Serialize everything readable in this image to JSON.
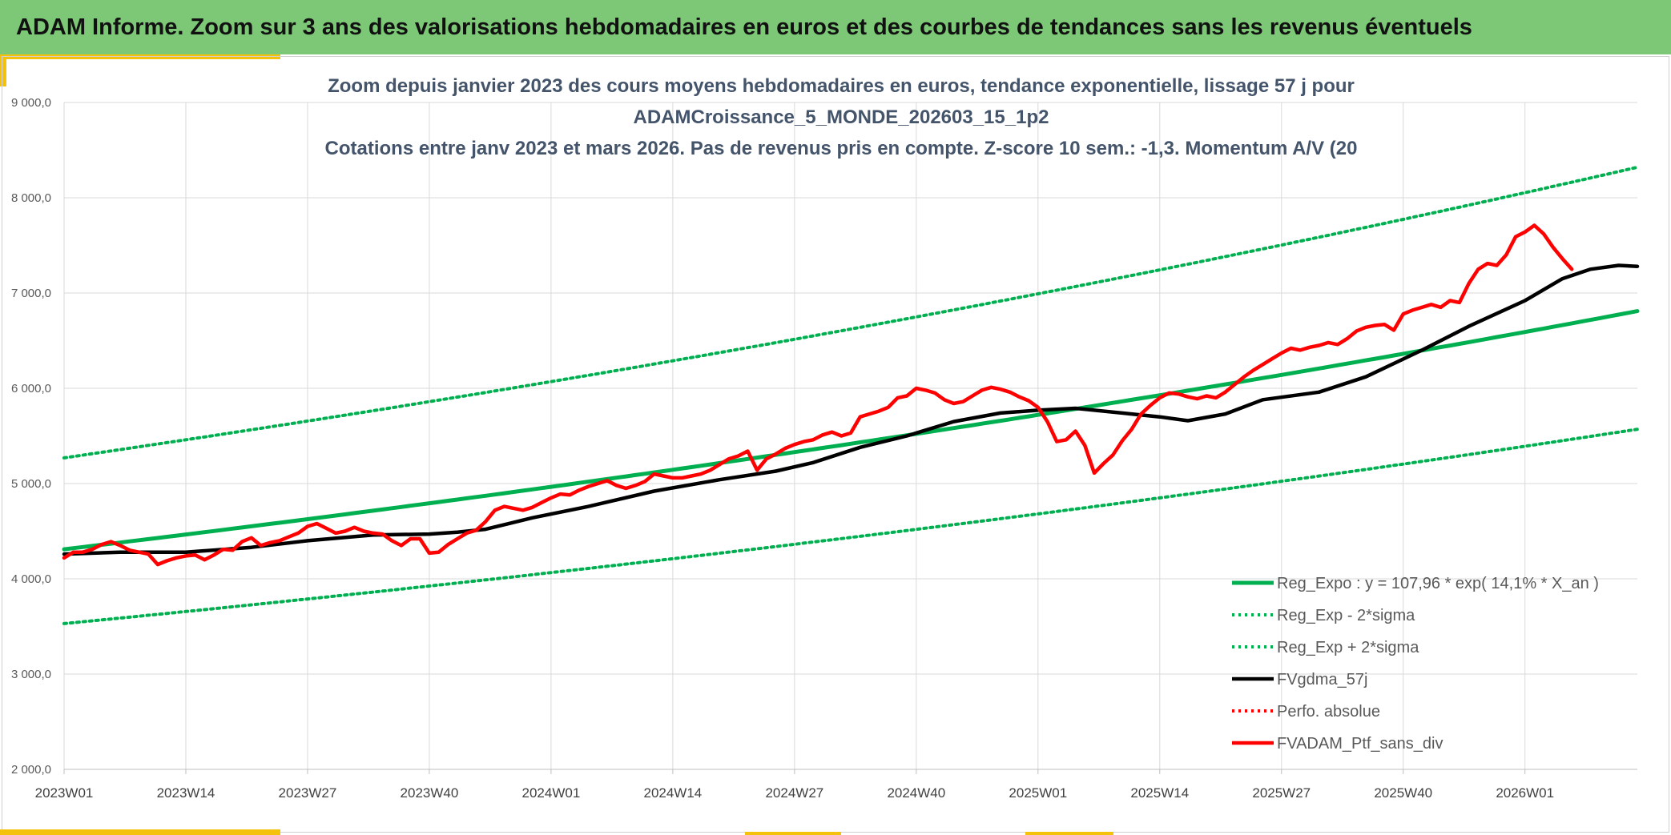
{
  "banner": {
    "title": "ADAM Informe. Zoom sur 3 ans des valorisations hebdomadaires en euros et des courbes de tendances sans les revenus éventuels"
  },
  "colors": {
    "banner_bg": "#7dc876",
    "reg_expo": "#00b050",
    "fvgdma": "#000000",
    "fvadam": "#ff0000",
    "accent": "#f4c20d"
  },
  "chart_data": {
    "type": "line",
    "title_lines": [
      "Zoom depuis janvier 2023 des cours moyens hebdomadaires en euros, tendance exponentielle, lissage 57 j pour",
      "ADAMCroissance_5_MONDE_202603_15_1p2",
      "Cotations entre janv 2023 et mars 2026. Pas de revenus pris en compte. Z-score 10 sem.: -1,3. Momentum A/V (20"
    ],
    "x_tick_labels": [
      "2023W01",
      "2023W14",
      "2023W27",
      "2023W40",
      "2024W01",
      "2024W14",
      "2024W27",
      "2024W40",
      "2025W01",
      "2025W14",
      "2025W27",
      "2025W40",
      "2026W01"
    ],
    "x_tick_weeks": [
      0,
      13,
      26,
      39,
      52,
      65,
      78,
      91,
      104,
      117,
      130,
      143,
      156
    ],
    "x_range_weeks": [
      0,
      168
    ],
    "y_tick_labels": [
      "2 000,0",
      "3 000,0",
      "4 000,0",
      "5 000,0",
      "6 000,0",
      "7 000,0",
      "8 000,0",
      "9 000,0"
    ],
    "y_ticks": [
      2000,
      3000,
      4000,
      5000,
      6000,
      7000,
      8000,
      9000
    ],
    "ylim": [
      2000,
      9000
    ],
    "grid": true,
    "legend_position": "bottom-right",
    "legend": [
      "Reg_Expo : y = 107,96 * exp( 14,1% *  X_an )",
      "Reg_Exp - 2*sigma",
      "Reg_Exp + 2*sigma",
      "FVgdma_57j",
      "Perfo. absolue",
      "FVADAM_Ptf_sans_div"
    ],
    "series": [
      {
        "name": "Reg_Expo : y = 107,96 * exp( 14,1% *  X_an )",
        "style": "solid-green",
        "x": [
          0,
          168
        ],
        "start": 4310,
        "end": 6810,
        "model": "exponential"
      },
      {
        "name": "Reg_Exp - 2*sigma",
        "style": "dotted-green",
        "x": [
          0,
          168
        ],
        "start": 3530,
        "end": 5570,
        "model": "exponential"
      },
      {
        "name": "Reg_Exp + 2*sigma",
        "style": "dotted-green",
        "x": [
          0,
          168
        ],
        "start": 5270,
        "end": 8320,
        "model": "exponential"
      },
      {
        "name": "FVgdma_57j",
        "style": "solid-black",
        "points": [
          [
            0,
            4260
          ],
          [
            6,
            4280
          ],
          [
            13,
            4280
          ],
          [
            20,
            4330
          ],
          [
            26,
            4400
          ],
          [
            33,
            4460
          ],
          [
            39,
            4470
          ],
          [
            42,
            4490
          ],
          [
            45,
            4520
          ],
          [
            50,
            4640
          ],
          [
            56,
            4760
          ],
          [
            63,
            4920
          ],
          [
            70,
            5040
          ],
          [
            76,
            5130
          ],
          [
            80,
            5220
          ],
          [
            85,
            5380
          ],
          [
            90,
            5500
          ],
          [
            95,
            5650
          ],
          [
            100,
            5740
          ],
          [
            104,
            5770
          ],
          [
            108,
            5790
          ],
          [
            114,
            5730
          ],
          [
            117,
            5700
          ],
          [
            120,
            5660
          ],
          [
            124,
            5730
          ],
          [
            128,
            5880
          ],
          [
            134,
            5960
          ],
          [
            139,
            6120
          ],
          [
            145,
            6400
          ],
          [
            150,
            6650
          ],
          [
            156,
            6920
          ],
          [
            160,
            7150
          ],
          [
            163,
            7250
          ],
          [
            166,
            7290
          ],
          [
            168,
            7280
          ]
        ]
      },
      {
        "name": "FVADAM_Ptf_sans_div",
        "style": "solid-red",
        "points": [
          [
            0,
            4220
          ],
          [
            1,
            4280
          ],
          [
            2,
            4280
          ],
          [
            3,
            4310
          ],
          [
            4,
            4360
          ],
          [
            5,
            4390
          ],
          [
            6,
            4350
          ],
          [
            7,
            4300
          ],
          [
            8,
            4280
          ],
          [
            9,
            4260
          ],
          [
            10,
            4150
          ],
          [
            11,
            4190
          ],
          [
            12,
            4220
          ],
          [
            13,
            4240
          ],
          [
            14,
            4250
          ],
          [
            15,
            4200
          ],
          [
            16,
            4250
          ],
          [
            17,
            4310
          ],
          [
            18,
            4300
          ],
          [
            19,
            4390
          ],
          [
            20,
            4430
          ],
          [
            21,
            4350
          ],
          [
            22,
            4380
          ],
          [
            23,
            4400
          ],
          [
            24,
            4440
          ],
          [
            25,
            4480
          ],
          [
            26,
            4550
          ],
          [
            27,
            4580
          ],
          [
            28,
            4530
          ],
          [
            29,
            4480
          ],
          [
            30,
            4500
          ],
          [
            31,
            4540
          ],
          [
            32,
            4500
          ],
          [
            33,
            4480
          ],
          [
            34,
            4470
          ],
          [
            35,
            4400
          ],
          [
            36,
            4350
          ],
          [
            37,
            4420
          ],
          [
            38,
            4420
          ],
          [
            39,
            4270
          ],
          [
            40,
            4280
          ],
          [
            41,
            4360
          ],
          [
            42,
            4420
          ],
          [
            43,
            4480
          ],
          [
            44,
            4510
          ],
          [
            45,
            4600
          ],
          [
            46,
            4720
          ],
          [
            47,
            4760
          ],
          [
            48,
            4740
          ],
          [
            49,
            4720
          ],
          [
            50,
            4750
          ],
          [
            51,
            4800
          ],
          [
            52,
            4850
          ],
          [
            53,
            4890
          ],
          [
            54,
            4880
          ],
          [
            55,
            4930
          ],
          [
            56,
            4970
          ],
          [
            57,
            5000
          ],
          [
            58,
            5030
          ],
          [
            59,
            4980
          ],
          [
            60,
            4950
          ],
          [
            61,
            4980
          ],
          [
            62,
            5020
          ],
          [
            63,
            5100
          ],
          [
            64,
            5080
          ],
          [
            65,
            5060
          ],
          [
            66,
            5060
          ],
          [
            67,
            5080
          ],
          [
            68,
            5100
          ],
          [
            69,
            5140
          ],
          [
            70,
            5200
          ],
          [
            71,
            5260
          ],
          [
            72,
            5290
          ],
          [
            73,
            5340
          ],
          [
            74,
            5140
          ],
          [
            75,
            5260
          ],
          [
            76,
            5310
          ],
          [
            77,
            5370
          ],
          [
            78,
            5410
          ],
          [
            79,
            5440
          ],
          [
            80,
            5460
          ],
          [
            81,
            5510
          ],
          [
            82,
            5540
          ],
          [
            83,
            5500
          ],
          [
            84,
            5530
          ],
          [
            85,
            5700
          ],
          [
            86,
            5730
          ],
          [
            87,
            5760
          ],
          [
            88,
            5800
          ],
          [
            89,
            5900
          ],
          [
            90,
            5920
          ],
          [
            91,
            6000
          ],
          [
            92,
            5980
          ],
          [
            93,
            5950
          ],
          [
            94,
            5880
          ],
          [
            95,
            5840
          ],
          [
            96,
            5860
          ],
          [
            97,
            5920
          ],
          [
            98,
            5980
          ],
          [
            99,
            6010
          ],
          [
            100,
            5990
          ],
          [
            101,
            5960
          ],
          [
            102,
            5910
          ],
          [
            103,
            5870
          ],
          [
            104,
            5800
          ],
          [
            105,
            5650
          ],
          [
            106,
            5440
          ],
          [
            107,
            5460
          ],
          [
            108,
            5550
          ],
          [
            109,
            5400
          ],
          [
            110,
            5110
          ],
          [
            111,
            5210
          ],
          [
            112,
            5300
          ],
          [
            113,
            5450
          ],
          [
            114,
            5570
          ],
          [
            115,
            5730
          ],
          [
            116,
            5820
          ],
          [
            117,
            5900
          ],
          [
            118,
            5950
          ],
          [
            119,
            5940
          ],
          [
            120,
            5910
          ],
          [
            121,
            5890
          ],
          [
            122,
            5920
          ],
          [
            123,
            5900
          ],
          [
            124,
            5960
          ],
          [
            125,
            6040
          ],
          [
            126,
            6120
          ],
          [
            127,
            6190
          ],
          [
            128,
            6250
          ],
          [
            129,
            6310
          ],
          [
            130,
            6370
          ],
          [
            131,
            6420
          ],
          [
            132,
            6400
          ],
          [
            133,
            6430
          ],
          [
            134,
            6450
          ],
          [
            135,
            6480
          ],
          [
            136,
            6460
          ],
          [
            137,
            6520
          ],
          [
            138,
            6600
          ],
          [
            139,
            6640
          ],
          [
            140,
            6660
          ],
          [
            141,
            6670
          ],
          [
            142,
            6610
          ],
          [
            143,
            6780
          ],
          [
            144,
            6820
          ],
          [
            145,
            6850
          ],
          [
            146,
            6880
          ],
          [
            147,
            6850
          ],
          [
            148,
            6920
          ],
          [
            149,
            6900
          ],
          [
            150,
            7100
          ],
          [
            151,
            7250
          ],
          [
            152,
            7310
          ],
          [
            153,
            7290
          ],
          [
            154,
            7400
          ],
          [
            155,
            7590
          ],
          [
            156,
            7640
          ],
          [
            157,
            7710
          ],
          [
            158,
            7620
          ],
          [
            159,
            7480
          ],
          [
            160,
            7360
          ],
          [
            161,
            7250
          ]
        ]
      }
    ]
  }
}
